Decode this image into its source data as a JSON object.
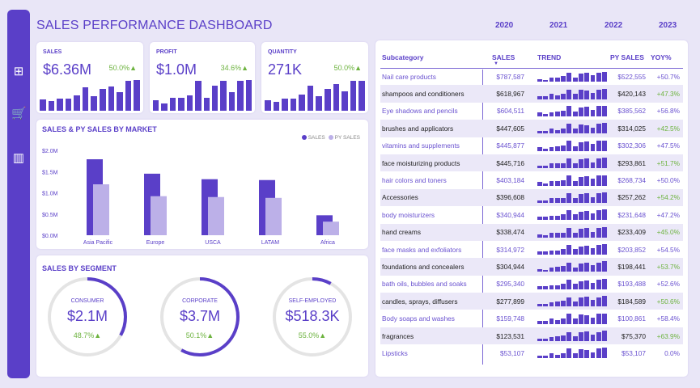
{
  "title": "SALES PERFORMANCE DASHBOARD",
  "years": [
    "2020",
    "2021",
    "2022",
    "2023"
  ],
  "sidebar": [
    "apps-add-icon",
    "cart-add-icon",
    "bar-chart-icon"
  ],
  "kpis": [
    {
      "label": "SALES",
      "value": "$6.36M",
      "pct": "50.0%▲",
      "bars": [
        38,
        32,
        42,
        42,
        52,
        80,
        48,
        74,
        82,
        63,
        100,
        104
      ]
    },
    {
      "label": "PROFIT",
      "value": "$1.0M",
      "pct": "34.6%▲",
      "bars": [
        36,
        26,
        44,
        44,
        52,
        100,
        44,
        86,
        100,
        64,
        100,
        104
      ]
    },
    {
      "label": "QUANTITY",
      "value": "271K",
      "pct": "50.0%▲",
      "bars": [
        36,
        30,
        42,
        42,
        56,
        84,
        50,
        74,
        90,
        66,
        100,
        100
      ]
    }
  ],
  "market": {
    "title": "SALES & PY SALES BY MARKET",
    "legend": [
      "SALES",
      "PY SALES"
    ],
    "colors": {
      "sales": "#5a3fc8",
      "py": "#bcb0e8"
    }
  },
  "chart_data": {
    "type": "bar",
    "title": "SALES & PY SALES BY MARKET",
    "categories": [
      "Asia Pacific",
      "Europe",
      "USCA",
      "LATAM",
      "Africa"
    ],
    "series": [
      {
        "name": "SALES",
        "values": [
          1.79,
          1.45,
          1.32,
          1.3,
          0.47
        ]
      },
      {
        "name": "PY SALES",
        "values": [
          1.2,
          0.92,
          0.9,
          0.88,
          0.32
        ]
      }
    ],
    "yticks": [
      "$0.0M",
      "$0.5M",
      "$1.0M",
      "$1.5M",
      "$2.0M"
    ],
    "ylim": [
      0,
      2.0
    ],
    "unit": "$M"
  },
  "segments": {
    "title": "SALES BY SEGMENT",
    "items": [
      {
        "label": "CONSUMER",
        "value": "$2.1M",
        "pct": "48.7%▲",
        "fill": 0.33
      },
      {
        "label": "CORPORATE",
        "value": "$3.7M",
        "pct": "50.1%▲",
        "fill": 0.58
      },
      {
        "label": "SELF-EMPLOYED",
        "value": "$518.3K",
        "pct": "55.0%▲",
        "fill": 0.08
      }
    ]
  },
  "table": {
    "headers": [
      "Subcategory",
      "SALES",
      "TREND",
      "PY SALES",
      "YOY%"
    ],
    "trend_pattern": [
      30,
      25,
      45,
      45,
      55,
      100,
      50,
      90,
      95,
      65,
      100,
      110
    ],
    "rows": [
      [
        "Nail care products",
        "$787,587",
        "$522,555",
        "+50.7%"
      ],
      [
        "shampoos and conditioners",
        "$618,967",
        "$420,143",
        "+47.3%"
      ],
      [
        "Eye shadows and pencils",
        "$604,511",
        "$385,562",
        "+56.8%"
      ],
      [
        "brushes and applicators",
        "$447,605",
        "$314,025",
        "+42.5%"
      ],
      [
        "vitamins and supplements",
        "$445,877",
        "$302,306",
        "+47.5%"
      ],
      [
        "face moisturizing products",
        "$445,716",
        "$293,861",
        "+51.7%"
      ],
      [
        "hair colors and toners",
        "$403,184",
        "$268,734",
        "+50.0%"
      ],
      [
        "Accessories",
        "$396,608",
        "$257,262",
        "+54.2%"
      ],
      [
        "body moisturizers",
        "$340,944",
        "$231,648",
        "+47.2%"
      ],
      [
        "hand creams",
        "$338,474",
        "$233,409",
        "+45.0%"
      ],
      [
        "face masks and exfoliators",
        "$314,972",
        "$203,852",
        "+54.5%"
      ],
      [
        "foundations and concealers",
        "$304,944",
        "$198,441",
        "+53.7%"
      ],
      [
        "bath oils, bubbles and soaks",
        "$295,340",
        "$193,488",
        "+52.6%"
      ],
      [
        "candles, sprays, diffusers",
        "$277,899",
        "$184,589",
        "+50.6%"
      ],
      [
        "Body soaps and washes",
        "$159,748",
        "$100,861",
        "+58.4%"
      ],
      [
        "fragrances",
        "$123,531",
        "$75,370",
        "+63.9%"
      ],
      [
        "Lipsticks",
        "$53,107",
        "$53,107",
        "0.0%"
      ]
    ]
  }
}
